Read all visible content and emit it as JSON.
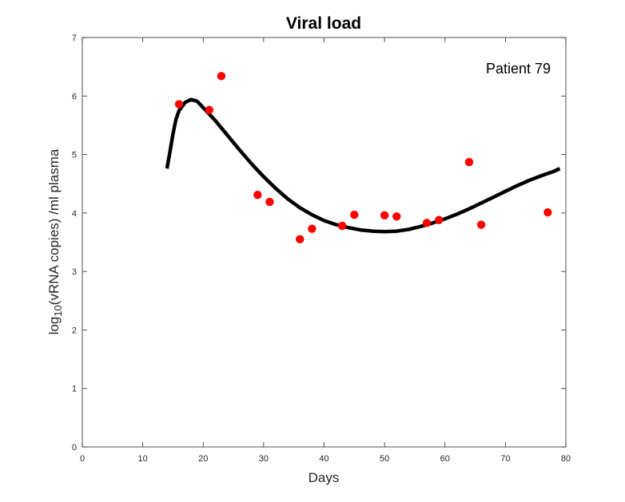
{
  "chart_data": {
    "type": "scatter",
    "title": "Viral load",
    "xlabel": "Days",
    "ylabel": {
      "prefix": "log",
      "subscript": "10",
      "suffix": "(vRNA copies) /ml plasma"
    },
    "annotation": "Patient 79",
    "xlim": [
      0,
      80
    ],
    "ylim": [
      0,
      7
    ],
    "xticks": [
      0,
      10,
      20,
      30,
      40,
      50,
      60,
      70,
      80
    ],
    "yticks": [
      0,
      1,
      2,
      3,
      4,
      5,
      6,
      7
    ],
    "grid": false,
    "series": [
      {
        "kind": "scatter",
        "color": "#ff0000",
        "x": [
          16,
          21,
          23,
          29,
          31,
          36,
          38,
          43,
          45,
          50,
          52,
          57,
          59,
          64,
          66,
          77
        ],
        "y": [
          5.86,
          5.76,
          6.34,
          4.31,
          4.19,
          3.55,
          3.73,
          3.78,
          3.97,
          3.96,
          3.94,
          3.83,
          3.88,
          4.87,
          3.8,
          4.01
        ]
      },
      {
        "kind": "line",
        "color": "#000000",
        "x": [
          14,
          14.5,
          15,
          15.5,
          16,
          17,
          18,
          19,
          20,
          22,
          24,
          26,
          28,
          30,
          32,
          34,
          36,
          38,
          40,
          42,
          44,
          46,
          48,
          50,
          52,
          54,
          56,
          58,
          60,
          62,
          64,
          66,
          68,
          70,
          72,
          74,
          76,
          78,
          79
        ],
        "y": [
          4.76,
          5.05,
          5.35,
          5.6,
          5.75,
          5.89,
          5.94,
          5.91,
          5.8,
          5.58,
          5.33,
          5.08,
          4.84,
          4.62,
          4.42,
          4.24,
          4.09,
          3.97,
          3.87,
          3.8,
          3.75,
          3.71,
          3.69,
          3.68,
          3.69,
          3.72,
          3.77,
          3.83,
          3.9,
          3.98,
          4.07,
          4.17,
          4.27,
          4.37,
          4.47,
          4.56,
          4.64,
          4.71,
          4.76
        ]
      }
    ]
  }
}
